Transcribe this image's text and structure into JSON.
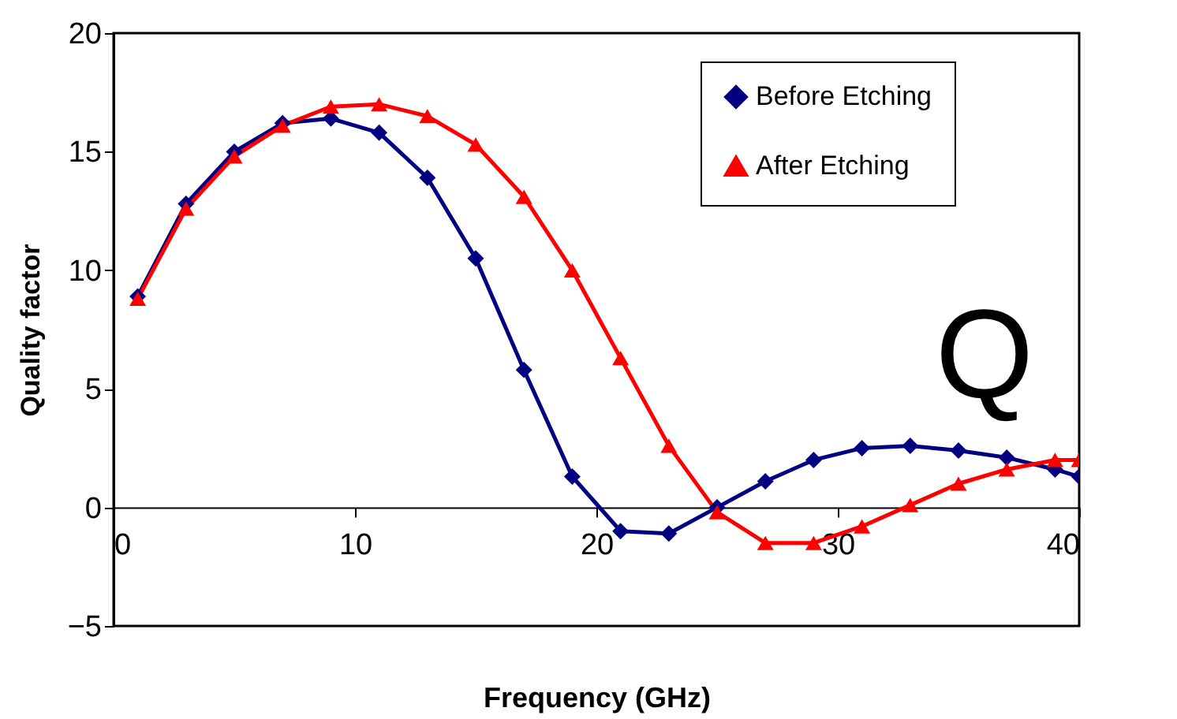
{
  "chart_data": {
    "type": "line",
    "xlabel": "Frequency (GHz)",
    "ylabel": "Quality factor",
    "annotations": [
      "Q"
    ],
    "x": [
      1,
      3,
      5,
      7,
      9,
      11,
      13,
      15,
      17,
      19,
      21,
      23,
      25,
      27,
      29,
      31,
      33,
      35,
      37,
      39,
      40
    ],
    "xlim": [
      0,
      40
    ],
    "xticks": [
      0,
      10,
      20,
      30,
      40
    ],
    "ylim": [
      -5,
      20
    ],
    "yticks": [
      -5,
      0,
      5,
      10,
      15,
      20
    ],
    "legend": "top right",
    "grid": false,
    "series": [
      {
        "name": "Before Etching",
        "color": "#000080",
        "marker": "diamond",
        "values": [
          8.9,
          12.8,
          15.0,
          16.2,
          16.4,
          15.8,
          13.9,
          10.5,
          5.8,
          1.3,
          -1.0,
          -1.1,
          0,
          1.1,
          2.0,
          2.5,
          2.6,
          2.4,
          2.1,
          1.6,
          1.3
        ]
      },
      {
        "name": "After Etching",
        "color": "#ff0000",
        "marker": "triangle",
        "values": [
          8.8,
          12.6,
          14.8,
          16.1,
          16.9,
          17.0,
          16.5,
          15.3,
          13.1,
          10.0,
          6.3,
          2.6,
          -0.2,
          -1.5,
          -1.5,
          -0.8,
          0.1,
          1.0,
          1.6,
          2.0,
          2.0
        ]
      }
    ]
  }
}
